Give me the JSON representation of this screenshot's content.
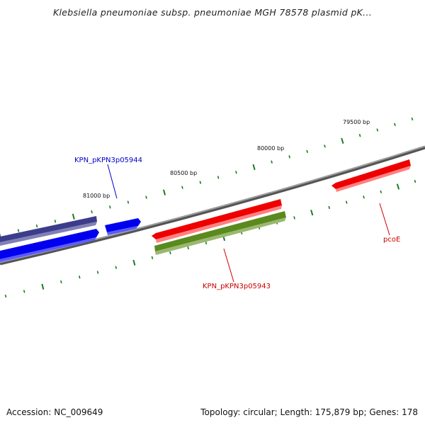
{
  "title": "Klebsiella pneumoniae subsp. pneumoniae MGH 78578 plasmid pK...",
  "footer": {
    "accession": "Accession: NC_009649",
    "summary": "Topology: circular; Length: 175,879 bp; Genes: 178"
  },
  "ticks": [
    {
      "label": "81000 bp"
    },
    {
      "label": "80500 bp"
    },
    {
      "label": "80000 bp"
    },
    {
      "label": "79500 bp"
    }
  ],
  "gene_labels": [
    {
      "text": "KPN_pKPN3p05944",
      "color": "#0000cc"
    },
    {
      "text": "KPN_pKPN3p05943",
      "color": "#cc0000"
    },
    {
      "text": "pcoE",
      "color": "#cc0000"
    }
  ],
  "colors": {
    "backbone": "#808080",
    "tick": "#1e7a1e",
    "gene_red": "#ee0000",
    "gene_blue": "#0000ee",
    "gene_navy": "#3c3c8c",
    "gene_olive": "#5a8a1e"
  }
}
